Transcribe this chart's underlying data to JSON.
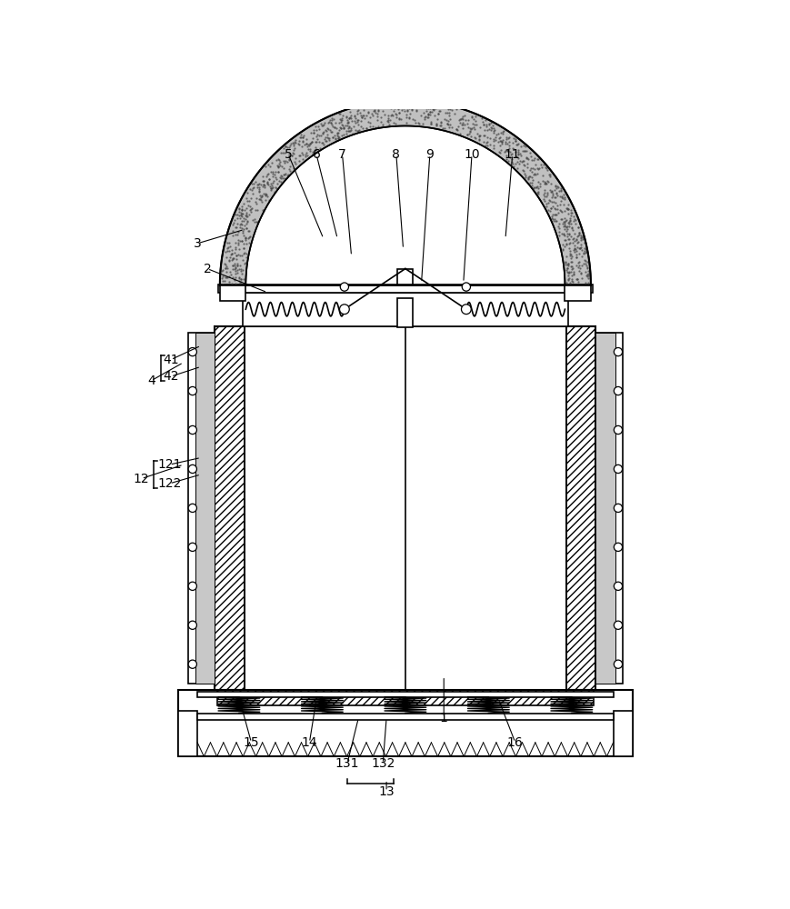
{
  "bg_color": "#ffffff",
  "line_color": "#000000",
  "hatch_color": "#000000",
  "stipple_color": "#888888"
}
